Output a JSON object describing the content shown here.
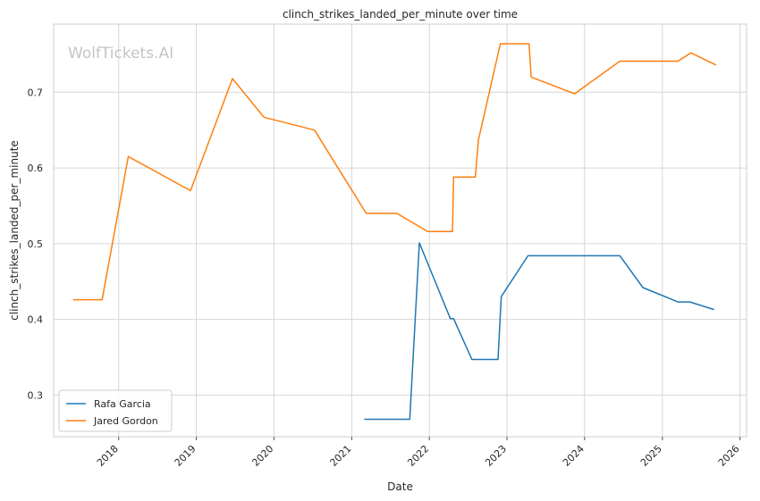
{
  "chart_data": {
    "type": "line",
    "title": "clinch_strikes_landed_per_minute over time",
    "xlabel": "Date",
    "ylabel": "clinch_strikes_landed_per_minute",
    "watermark": "WolfTickets.AI",
    "xlim": [
      "2017-03-01",
      "2026-02-01"
    ],
    "ylim": [
      0.245,
      0.79
    ],
    "x_ticks": [
      "2018",
      "2019",
      "2020",
      "2021",
      "2022",
      "2023",
      "2024",
      "2025",
      "2026"
    ],
    "y_ticks": [
      0.3,
      0.4,
      0.5,
      0.6,
      0.7
    ],
    "y_tick_labels": [
      "0.3",
      "0.4",
      "0.5",
      "0.6",
      "0.7"
    ],
    "grid": true,
    "legend_position": "lower-left",
    "series": [
      {
        "name": "Rafa Garcia",
        "color": "#1f77b4",
        "x": [
          "2021-03-01",
          "2021-10-01",
          "2021-11-15",
          "2022-04-10",
          "2022-04-25",
          "2022-07-20",
          "2022-11-20",
          "2022-12-05",
          "2023-04-10",
          "2024-06-15",
          "2024-10-01",
          "2025-03-15",
          "2025-05-10",
          "2025-09-01"
        ],
        "y": [
          0.268,
          0.268,
          0.501,
          0.401,
          0.401,
          0.347,
          0.347,
          0.43,
          0.484,
          0.484,
          0.442,
          0.423,
          0.423,
          0.413
        ]
      },
      {
        "name": "Jared Gordon",
        "color": "#ff7f0e",
        "x": [
          "2017-06-01",
          "2017-10-15",
          "2018-02-15",
          "2018-12-05",
          "2019-06-20",
          "2019-11-15",
          "2020-07-10",
          "2021-03-10",
          "2021-08-01",
          "2021-12-25",
          "2022-04-20",
          "2022-04-25",
          "2022-08-05",
          "2022-08-20",
          "2022-12-01",
          "2023-04-15",
          "2023-04-25",
          "2023-11-15",
          "2024-06-15",
          "2025-03-15",
          "2025-05-15",
          "2025-09-10"
        ],
        "y": [
          0.426,
          0.426,
          0.615,
          0.57,
          0.718,
          0.667,
          0.65,
          0.54,
          0.54,
          0.516,
          0.516,
          0.588,
          0.588,
          0.637,
          0.764,
          0.764,
          0.72,
          0.698,
          0.741,
          0.741,
          0.752,
          0.736
        ]
      }
    ]
  }
}
